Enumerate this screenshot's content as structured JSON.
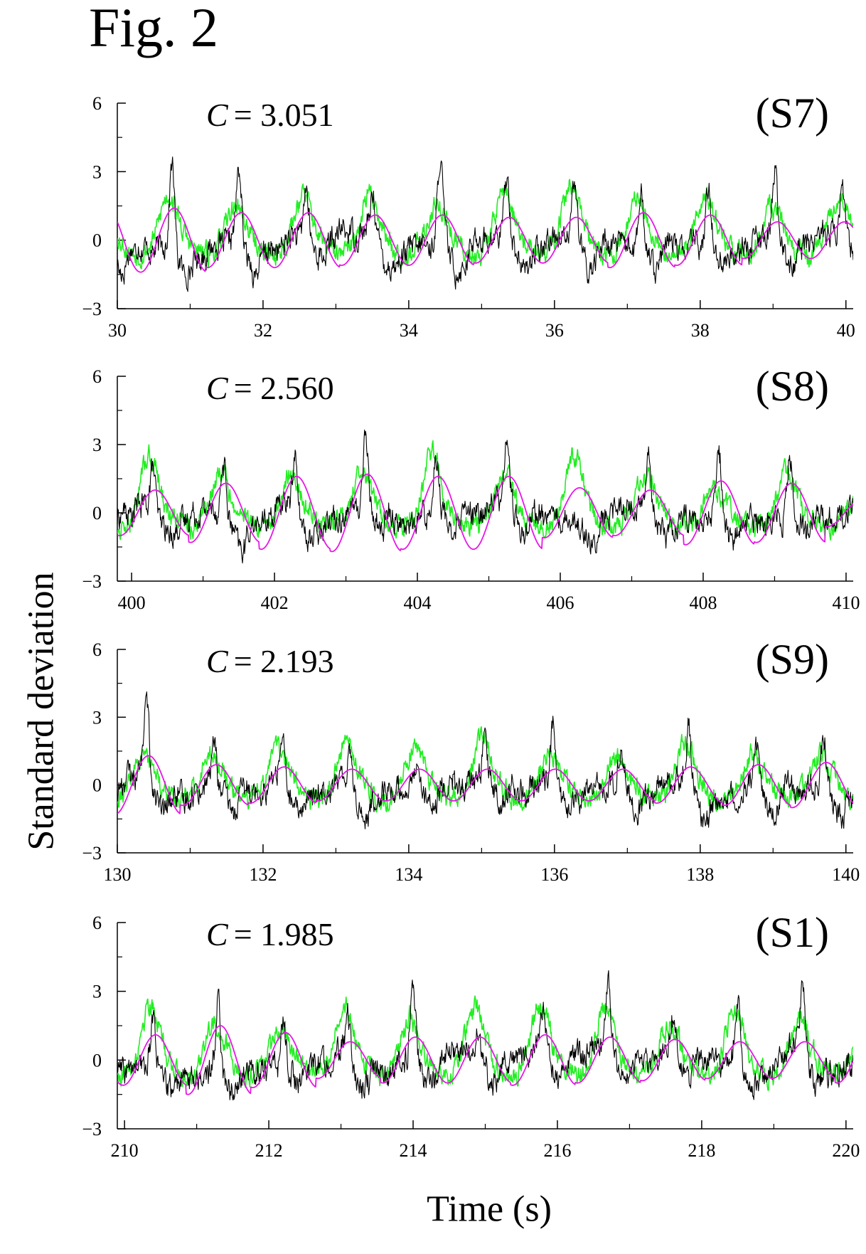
{
  "figure": {
    "title": "Fig. 2",
    "ylabel": "Standard deviation",
    "xlabel": "Time (s)"
  },
  "colors": {
    "black": "#000000",
    "green": "#22ee22",
    "magenta": "#e617e6"
  },
  "chart_data": [
    {
      "type": "line",
      "label": "(S7)",
      "annotation_var": "C",
      "annotation_value": "= 3.051",
      "xlim": [
        30,
        40.1
      ],
      "ylim": [
        -3,
        6
      ],
      "xticks": [
        30,
        32,
        34,
        36,
        38,
        40
      ],
      "xtick_labels": [
        "30",
        "32",
        "34",
        "36",
        "38",
        "40"
      ],
      "yticks": [
        -3,
        0,
        3,
        6
      ],
      "ytick_labels": [
        "−3",
        "0",
        "3",
        "6"
      ],
      "period": 0.92,
      "phase0": 30.75,
      "black_peaks": [
        4.1,
        3.6,
        2.7,
        2.4,
        3.8,
        2.9,
        2.6,
        2.6,
        2.8,
        3.6,
        2.7
      ],
      "green_peaks": [
        2.3,
        1.8,
        2.3,
        2.3,
        1.9,
        2.5,
        2.7,
        2.2,
        2.2,
        1.7,
        2.2
      ],
      "magenta_amps": [
        1.4,
        1.2,
        1.2,
        1.1,
        1.1,
        1.0,
        1.0,
        1.2,
        1.1,
        0.8,
        0.8
      ],
      "series": [
        {
          "name": "",
          "color": "#000000"
        },
        {
          "name": "",
          "color": "#22ee22"
        },
        {
          "name": "",
          "color": "#e617e6"
        }
      ]
    },
    {
      "type": "line",
      "label": "(S8)",
      "annotation_var": "C",
      "annotation_value": "= 2.560",
      "xlim": [
        399.8,
        410.1
      ],
      "ylim": [
        -3,
        6
      ],
      "xticks": [
        400,
        402,
        404,
        406,
        408,
        410
      ],
      "xtick_labels": [
        "400",
        "402",
        "404",
        "406",
        "408",
        "410"
      ],
      "yticks": [
        -3,
        0,
        3,
        6
      ],
      "ytick_labels": [
        "−3",
        "0",
        "3",
        "6"
      ],
      "period": 0.99,
      "phase0": 400.3,
      "black_peaks": [
        2.6,
        2.7,
        3.3,
        3.7,
        3.2,
        3.1,
        0.2,
        3.3,
        3.1,
        3.2,
        0.3
      ],
      "green_peaks": [
        2.8,
        2.0,
        2.0,
        2.1,
        2.9,
        2.1,
        2.8,
        1.8,
        1.3,
        2.0,
        0.7
      ],
      "magenta_amps": [
        1.0,
        1.3,
        1.6,
        1.7,
        1.6,
        1.6,
        1.1,
        1.0,
        1.4,
        1.3,
        0.6
      ],
      "series": [
        {
          "name": "",
          "color": "#000000"
        },
        {
          "name": "",
          "color": "#22ee22"
        },
        {
          "name": "",
          "color": "#e617e6"
        }
      ]
    },
    {
      "type": "line",
      "label": "(S9)",
      "annotation_var": "C",
      "annotation_value": "= 2.193",
      "xlim": [
        130,
        140.1
      ],
      "ylim": [
        -3,
        6
      ],
      "xticks": [
        130,
        132,
        134,
        136,
        138,
        140
      ],
      "xtick_labels": [
        "130",
        "132",
        "134",
        "136",
        "138",
        "140"
      ],
      "yticks": [
        -3,
        0,
        3,
        6
      ],
      "ytick_labels": [
        "−3",
        "0",
        "3",
        "6"
      ],
      "period": 0.93,
      "phase0": 130.4,
      "black_peaks": [
        3.6,
        2.4,
        2.6,
        2.0,
        1.8,
        2.6,
        2.6,
        2.1,
        2.8,
        2.4,
        3.0
      ],
      "green_peaks": [
        1.4,
        1.7,
        2.0,
        2.3,
        1.9,
        2.3,
        1.6,
        1.5,
        2.2,
        1.6,
        1.6
      ],
      "magenta_amps": [
        1.3,
        0.9,
        0.8,
        0.7,
        0.7,
        0.7,
        0.7,
        0.7,
        0.8,
        0.9,
        1.0
      ],
      "series": [
        {
          "name": "",
          "color": "#000000"
        },
        {
          "name": "",
          "color": "#22ee22"
        },
        {
          "name": "",
          "color": "#e617e6"
        }
      ]
    },
    {
      "type": "line",
      "label": "(S1)",
      "annotation_var": "C",
      "annotation_value": "= 1.985",
      "xlim": [
        209.9,
        220.1
      ],
      "ylim": [
        -3,
        6
      ],
      "xticks": [
        210,
        212,
        214,
        216,
        218,
        220
      ],
      "xtick_labels": [
        "210",
        "212",
        "214",
        "216",
        "218",
        "220"
      ],
      "yticks": [
        -3,
        0,
        3,
        6
      ],
      "ytick_labels": [
        "−3",
        "0",
        "3",
        "6"
      ],
      "period": 0.9,
      "phase0": 210.4,
      "black_peaks": [
        2.6,
        3.8,
        2.2,
        2.0,
        3.7,
        1.4,
        1.6,
        3.3,
        2.1,
        3.1,
        3.5,
        1.5
      ],
      "green_peaks": [
        2.8,
        1.9,
        1.7,
        2.8,
        2.1,
        2.6,
        2.7,
        2.5,
        1.9,
        2.4,
        2.2,
        2.2
      ],
      "magenta_amps": [
        1.1,
        1.5,
        1.2,
        0.8,
        1.0,
        1.0,
        1.1,
        1.0,
        0.9,
        0.8,
        0.8,
        1.0
      ],
      "series": [
        {
          "name": "",
          "color": "#000000"
        },
        {
          "name": "",
          "color": "#22ee22"
        },
        {
          "name": "",
          "color": "#e617e6"
        }
      ]
    }
  ]
}
